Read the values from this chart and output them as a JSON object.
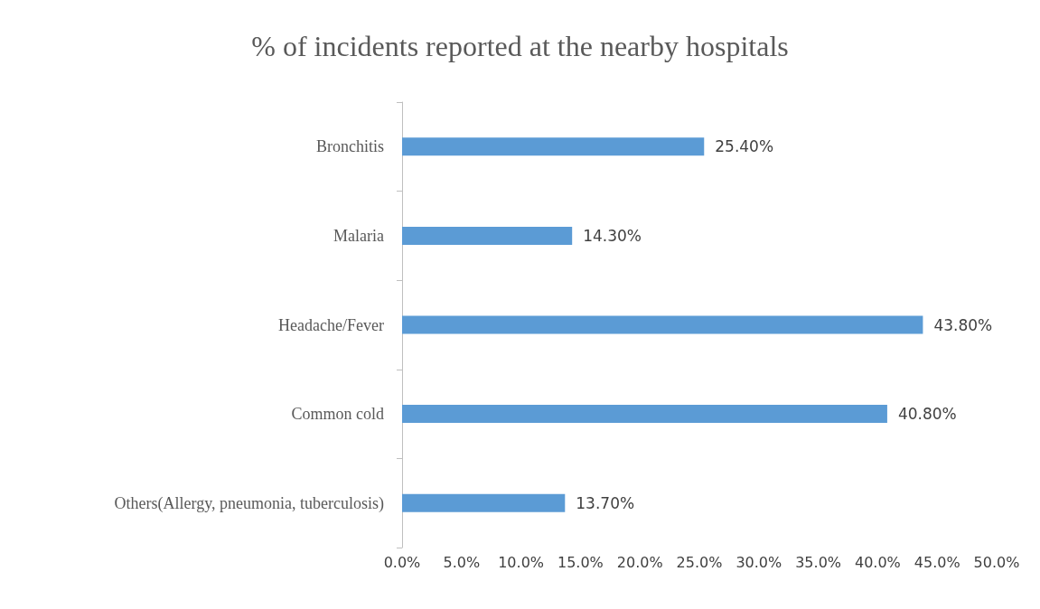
{
  "chart_data": {
    "type": "bar",
    "orientation": "horizontal",
    "title": "% of incidents reported at the nearby hospitals",
    "categories": [
      "Bronchitis",
      "Malaria",
      "Headache/Fever",
      "Common cold",
      "Others(Allergy, pneumonia, tuberculosis)"
    ],
    "values": [
      25.4,
      14.3,
      43.8,
      40.8,
      13.7
    ],
    "value_labels": [
      "25.40%",
      "14.30%",
      "43.80%",
      "40.80%",
      "13.70%"
    ],
    "color": "#5b9bd5",
    "xlim": [
      0,
      50
    ],
    "xticks": [
      {
        "value": 0,
        "label": "0.0%"
      },
      {
        "value": 5,
        "label": "5.0%"
      },
      {
        "value": 10,
        "label": "10.0%"
      },
      {
        "value": 15,
        "label": "15.0%"
      },
      {
        "value": 20,
        "label": "20.0%"
      },
      {
        "value": 25,
        "label": "25.0%"
      },
      {
        "value": 30,
        "label": "30.0%"
      },
      {
        "value": 35,
        "label": "35.0%"
      },
      {
        "value": 40,
        "label": "40.0%"
      },
      {
        "value": 45,
        "label": "45.0%"
      },
      {
        "value": 50,
        "label": "50.0%"
      }
    ],
    "grid": false
  }
}
